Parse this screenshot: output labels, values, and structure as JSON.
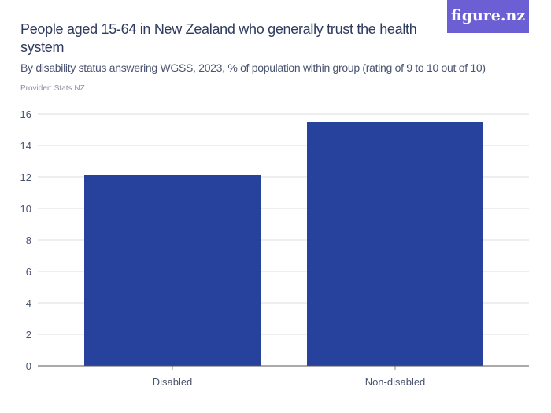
{
  "header": {
    "title": "People aged 15-64 in New Zealand who generally trust the health system",
    "subtitle": "By disability status answering WGSS, 2023, % of population within group (rating of 9 to 10 out of 10)",
    "provider": "Provider: Stats NZ",
    "logo": "figure.nz"
  },
  "chart_data": {
    "type": "bar",
    "title": "People aged 15-64 in New Zealand who generally trust the health system",
    "categories": [
      "Disabled",
      "Non-disabled"
    ],
    "values": [
      12.1,
      15.5
    ],
    "ylim": [
      0,
      16
    ],
    "yticks": [
      0,
      2,
      4,
      6,
      8,
      10,
      12,
      14,
      16
    ],
    "grid": true,
    "bar_color": "#27429c"
  }
}
